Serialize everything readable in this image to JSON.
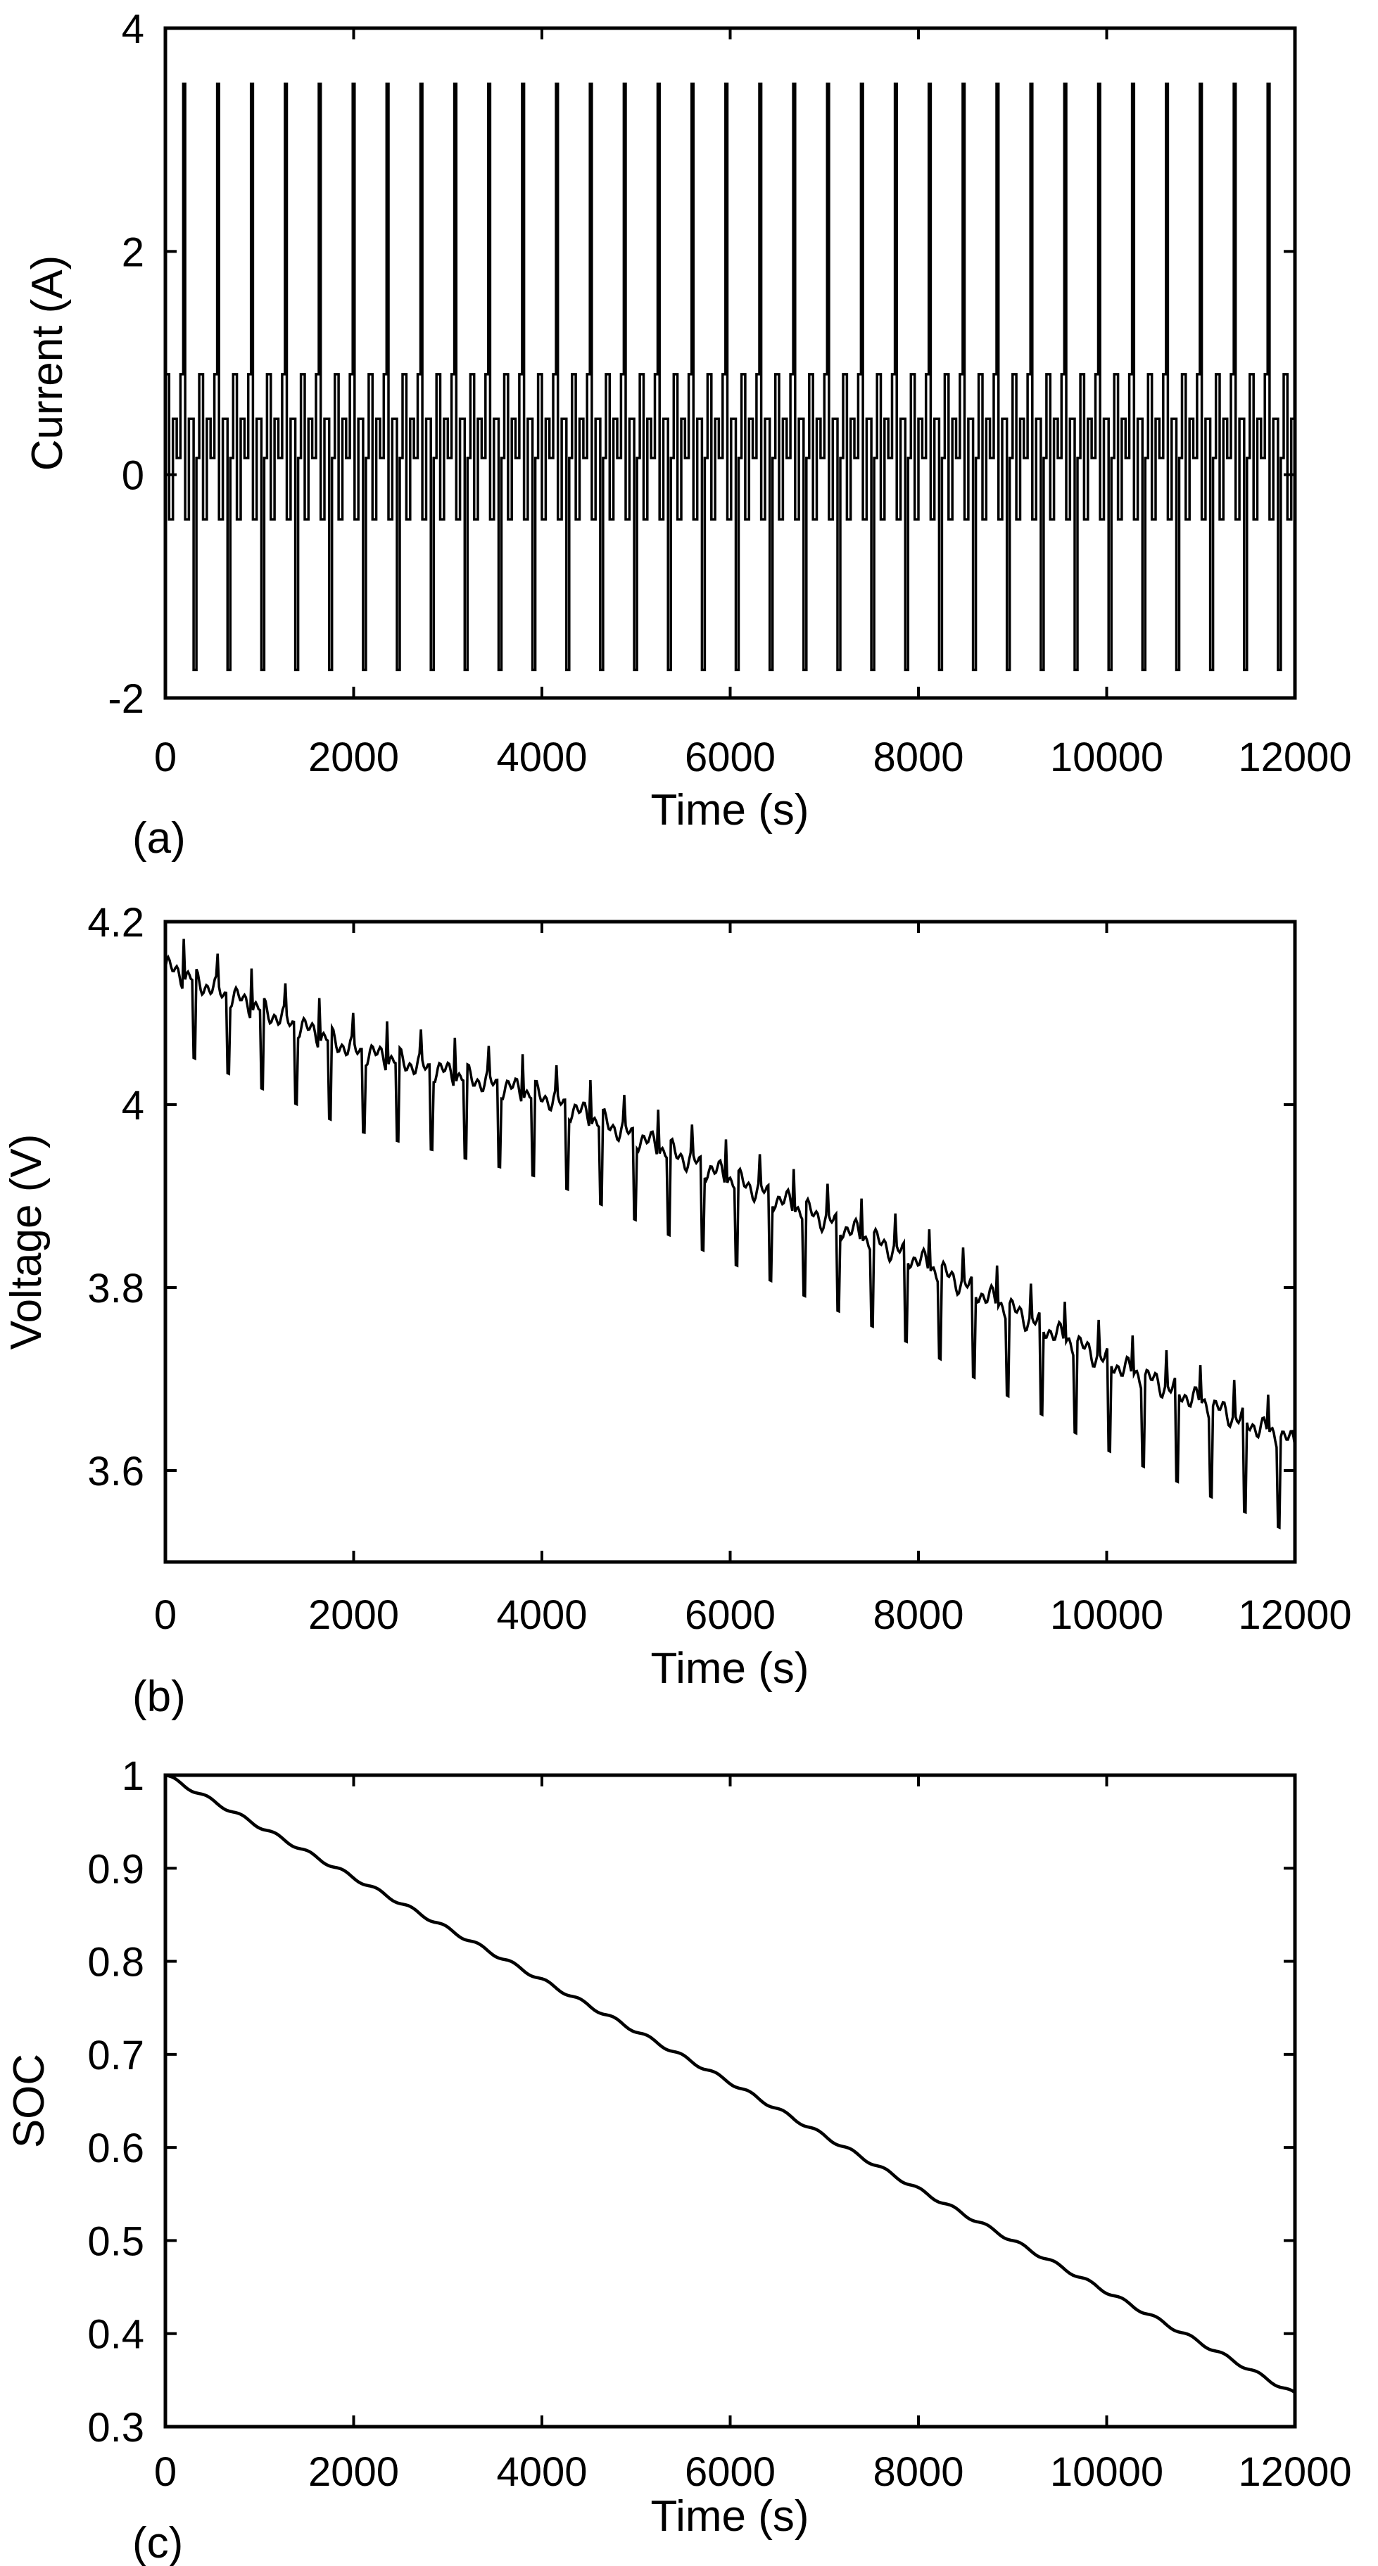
{
  "figure": {
    "stroke_color": "#000000",
    "background": "#ffffff"
  },
  "chart_data": [
    {
      "id": "a",
      "type": "line",
      "panel_label": "(a)",
      "title": "",
      "xlabel": "Time (s)",
      "ylabel": "Current (A)",
      "xlim": [
        0,
        12000
      ],
      "ylim": [
        -2,
        4
      ],
      "xticks": [
        "0",
        "2000",
        "4000",
        "6000",
        "8000",
        "10000",
        "12000"
      ],
      "yticks": [
        "-2",
        "0",
        "2",
        "4"
      ],
      "grid": false,
      "series": [
        {
          "name": "Current",
          "description": "repeating dynamic current profile",
          "period_s": 360,
          "cycle_start_s": 0,
          "cycle_end_s": 12000,
          "cycle_profile": {
            "t": [
              0,
              40,
              40,
              80,
              80,
              120,
              120,
              160,
              160,
              190,
              190,
              210,
              210,
              250,
              250,
              300,
              300,
              330,
              330,
              360
            ],
            "current": [
              0.9,
              0.9,
              -0.4,
              -0.4,
              0.5,
              0.5,
              0.15,
              0.15,
              0.9,
              0.9,
              3.5,
              3.5,
              -0.4,
              -0.4,
              0.5,
              0.5,
              -1.75,
              -1.75,
              0.15,
              0.15
            ]
          }
        }
      ]
    },
    {
      "id": "b",
      "type": "line",
      "panel_label": "(b)",
      "title": "",
      "xlabel": "Time (s)",
      "ylabel": "Voltage (V)",
      "xlim": [
        0,
        12000
      ],
      "ylim": [
        3.5,
        4.2
      ],
      "xticks": [
        "0",
        "2000",
        "4000",
        "6000",
        "8000",
        "10000",
        "12000"
      ],
      "yticks": [
        "3.6",
        "3.8",
        "4",
        "4.2"
      ],
      "grid": false,
      "series": [
        {
          "name": "Voltage",
          "description": "terminal voltage trend with periodic dips",
          "trend_t": [
            0,
            2000,
            4000,
            6000,
            8000,
            10000,
            12000
          ],
          "trend_v": [
            4.15,
            4.06,
            4.01,
            3.92,
            3.83,
            3.72,
            3.63
          ],
          "dip_spacing_s": 360,
          "dip_depth_v": 0.1,
          "spike_height_v": 0.04,
          "ripple_v": 0.015
        }
      ]
    },
    {
      "id": "c",
      "type": "line",
      "panel_label": "(c)",
      "title": "",
      "xlabel": "Time (s)",
      "ylabel": "SOC",
      "xlim": [
        0,
        12000
      ],
      "ylim": [
        0.3,
        1
      ],
      "xticks": [
        "0",
        "2000",
        "4000",
        "6000",
        "8000",
        "10000",
        "12000"
      ],
      "yticks": [
        "0.3",
        "0.4",
        "0.5",
        "0.6",
        "0.7",
        "0.8",
        "0.9",
        "1"
      ],
      "grid": false,
      "series": [
        {
          "name": "SOC",
          "x": [
            0,
            2000,
            4000,
            6000,
            8000,
            10000,
            12000
          ],
          "y": [
            1.0,
            0.89,
            0.78,
            0.67,
            0.555,
            0.445,
            0.335
          ],
          "step_period_s": 360
        }
      ]
    }
  ]
}
